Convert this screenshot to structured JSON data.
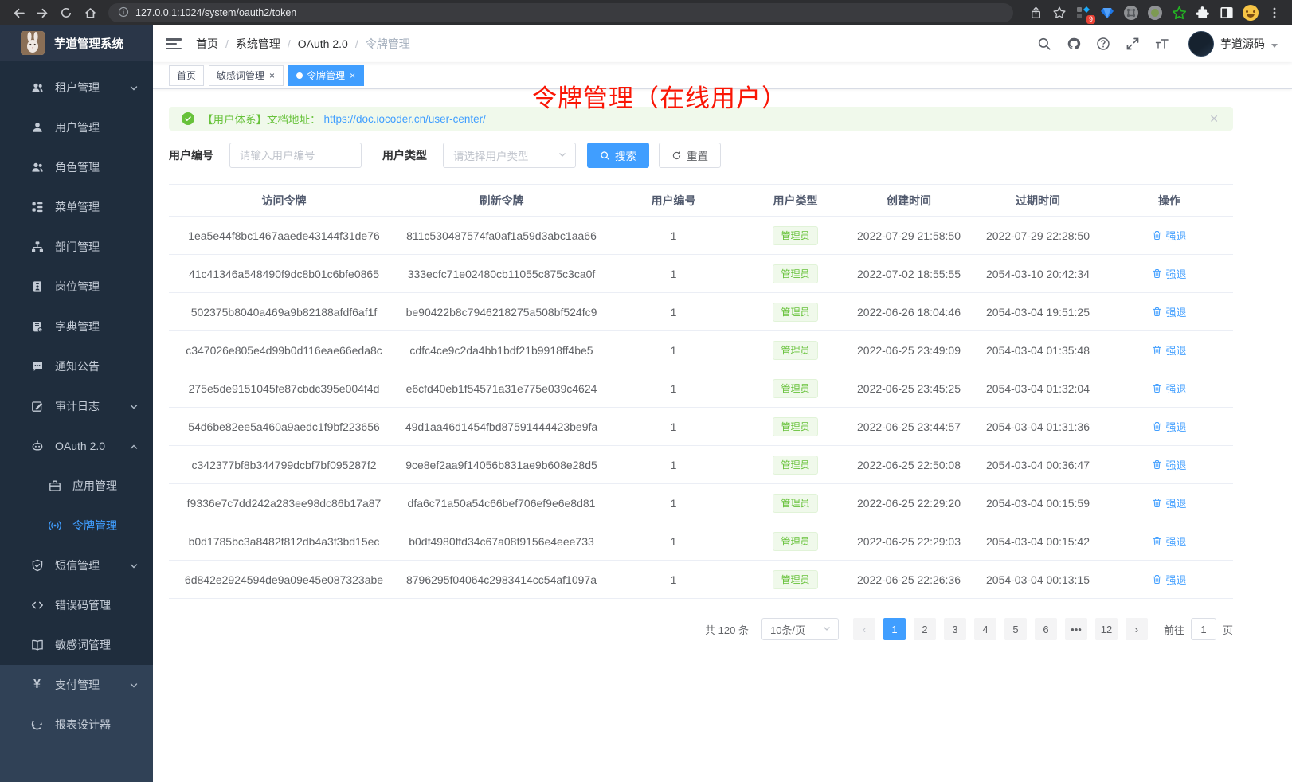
{
  "browser": {
    "url": "127.0.0.1:1024/system/oauth2/token",
    "extension_badge": "9"
  },
  "sidebar": {
    "title": "芋道管理系统",
    "items": [
      {
        "label": "租户管理",
        "icon": "users-icon",
        "chevron": "down",
        "section": "dark"
      },
      {
        "label": "用户管理",
        "icon": "user-icon",
        "section": "dark"
      },
      {
        "label": "角色管理",
        "icon": "users-icon",
        "section": "dark"
      },
      {
        "label": "菜单管理",
        "icon": "menu-tree-icon",
        "section": "dark"
      },
      {
        "label": "部门管理",
        "icon": "sitemap-icon",
        "section": "dark"
      },
      {
        "label": "岗位管理",
        "icon": "id-badge-icon",
        "section": "dark"
      },
      {
        "label": "字典管理",
        "icon": "book-icon",
        "section": "dark"
      },
      {
        "label": "通知公告",
        "icon": "chat-icon",
        "section": "dark"
      },
      {
        "label": "审计日志",
        "icon": "edit-icon",
        "chevron": "down",
        "section": "dark"
      },
      {
        "label": "OAuth 2.0",
        "icon": "robot-icon",
        "chevron": "up",
        "section": "dark"
      },
      {
        "label": "应用管理",
        "icon": "briefcase-icon",
        "sub": true,
        "section": "dark"
      },
      {
        "label": "令牌管理",
        "icon": "signal-icon",
        "sub": true,
        "active": true,
        "section": "dark"
      },
      {
        "label": "短信管理",
        "icon": "shield-icon",
        "chevron": "down",
        "section": "dark"
      },
      {
        "label": "错误码管理",
        "icon": "code-icon",
        "section": "dark"
      },
      {
        "label": "敏感词管理",
        "icon": "open-book-icon",
        "section": "dark"
      },
      {
        "label": "支付管理",
        "icon": "yen-icon",
        "chevron": "down",
        "section": "light"
      },
      {
        "label": "报表设计器",
        "icon": "refresh-circle-icon",
        "section": "light"
      }
    ]
  },
  "navbar": {
    "breadcrumb": [
      {
        "label": "首页"
      },
      {
        "label": "系统管理"
      },
      {
        "label": "OAuth 2.0"
      },
      {
        "label": "令牌管理",
        "muted": true
      }
    ],
    "username": "芋道源码"
  },
  "tabs": [
    {
      "label": "首页"
    },
    {
      "label": "敏感词管理",
      "closable": true
    },
    {
      "label": "令牌管理",
      "closable": true,
      "active": true
    }
  ],
  "annotation": {
    "text": "令牌管理（在线用户）",
    "color": "#fa1605"
  },
  "alert": {
    "prefix": "【用户体系】文档地址：",
    "link": "https://doc.iocoder.cn/user-center/"
  },
  "filters": {
    "user_id_label": "用户编号",
    "user_id_placeholder": "请输入用户编号",
    "user_type_label": "用户类型",
    "user_type_placeholder": "请选择用户类型",
    "search_label": "搜索",
    "reset_label": "重置"
  },
  "table": {
    "columns": [
      "访问令牌",
      "刷新令牌",
      "用户编号",
      "用户类型",
      "创建时间",
      "过期时间",
      "操作"
    ],
    "action_label": "强退",
    "rows": [
      {
        "access_token": "1ea5e44f8bc1467aaede43144f31de76",
        "refresh_token": "811c530487574fa0af1a59d3abc1aa66",
        "user_id": "1",
        "user_type": "管理员",
        "create_time": "2022-07-29 21:58:50",
        "expire_time": "2022-07-29 22:28:50"
      },
      {
        "access_token": "41c41346a548490f9dc8b01c6bfe0865",
        "refresh_token": "333ecfc71e02480cb11055c875c3ca0f",
        "user_id": "1",
        "user_type": "管理员",
        "create_time": "2022-07-02 18:55:55",
        "expire_time": "2054-03-10 20:42:34"
      },
      {
        "access_token": "502375b8040a469a9b82188afdf6af1f",
        "refresh_token": "be90422b8c7946218275a508bf524fc9",
        "user_id": "1",
        "user_type": "管理员",
        "create_time": "2022-06-26 18:04:46",
        "expire_time": "2054-03-04 19:51:25"
      },
      {
        "access_token": "c347026e805e4d99b0d116eae66eda8c",
        "refresh_token": "cdfc4ce9c2da4bb1bdf21b9918ff4be5",
        "user_id": "1",
        "user_type": "管理员",
        "create_time": "2022-06-25 23:49:09",
        "expire_time": "2054-03-04 01:35:48"
      },
      {
        "access_token": "275e5de9151045fe87cbdc395e004f4d",
        "refresh_token": "e6cfd40eb1f54571a31e775e039c4624",
        "user_id": "1",
        "user_type": "管理员",
        "create_time": "2022-06-25 23:45:25",
        "expire_time": "2054-03-04 01:32:04"
      },
      {
        "access_token": "54d6be82ee5a460a9aedc1f9bf223656",
        "refresh_token": "49d1aa46d1454fbd87591444423be9fa",
        "user_id": "1",
        "user_type": "管理员",
        "create_time": "2022-06-25 23:44:57",
        "expire_time": "2054-03-04 01:31:36"
      },
      {
        "access_token": "c342377bf8b344799dcbf7bf095287f2",
        "refresh_token": "9ce8ef2aa9f14056b831ae9b608e28d5",
        "user_id": "1",
        "user_type": "管理员",
        "create_time": "2022-06-25 22:50:08",
        "expire_time": "2054-03-04 00:36:47"
      },
      {
        "access_token": "f9336e7c7dd242a283ee98dc86b17a87",
        "refresh_token": "dfa6c71a50a54c66bef706ef9e6e8d81",
        "user_id": "1",
        "user_type": "管理员",
        "create_time": "2022-06-25 22:29:20",
        "expire_time": "2054-03-04 00:15:59"
      },
      {
        "access_token": "b0d1785bc3a8482f812db4a3f3bd15ec",
        "refresh_token": "b0df4980ffd34c67a08f9156e4eee733",
        "user_id": "1",
        "user_type": "管理员",
        "create_time": "2022-06-25 22:29:03",
        "expire_time": "2054-03-04 00:15:42"
      },
      {
        "access_token": "6d842e2924594de9a09e45e087323abe",
        "refresh_token": "8796295f04064c2983414cc54af1097a",
        "user_id": "1",
        "user_type": "管理员",
        "create_time": "2022-06-25 22:26:36",
        "expire_time": "2054-03-04 00:13:15"
      }
    ]
  },
  "pagination": {
    "total": "共 120 条",
    "page_size": "10条/页",
    "pages": [
      "1",
      "2",
      "3",
      "4",
      "5",
      "6",
      "•••",
      "12"
    ],
    "active_page": "1",
    "jump_prefix": "前往",
    "jump_value": "1",
    "jump_suffix": "页"
  }
}
